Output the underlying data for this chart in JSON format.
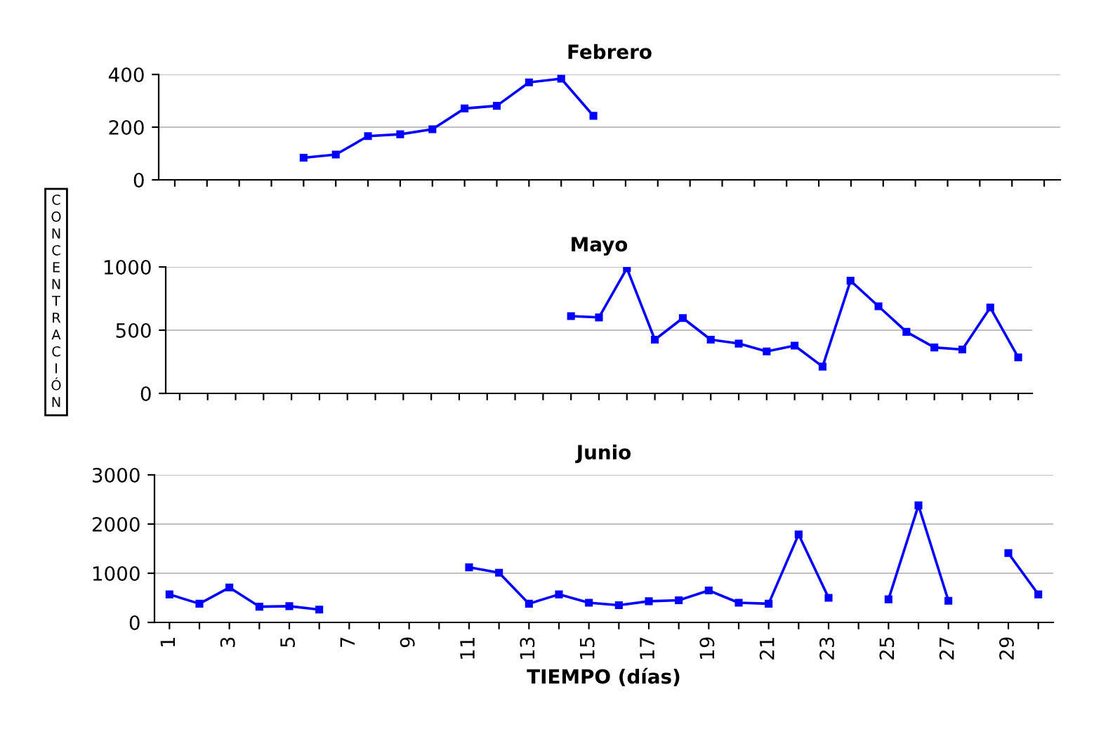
{
  "chart_data": [
    {
      "type": "line",
      "title": "Febrero",
      "categories": [
        null,
        null,
        null,
        null,
        null,
        null,
        null,
        null,
        null,
        null,
        null,
        null,
        null,
        null,
        null,
        null,
        null,
        null,
        null,
        null,
        null,
        null,
        null,
        null,
        null,
        null,
        null,
        null
      ],
      "series": [
        {
          "color": "#0000ff",
          "values": [
            null,
            null,
            null,
            null,
            84,
            96,
            166,
            173,
            192,
            271,
            281,
            370,
            384,
            243,
            null,
            null,
            null,
            null,
            null,
            null,
            null,
            null,
            null,
            null,
            null,
            null,
            null,
            null
          ]
        }
      ],
      "ylim": [
        0,
        400
      ],
      "yticks": [
        0,
        200,
        400
      ],
      "grid": "y",
      "marker": "square",
      "line_style": "solid",
      "tick_labels": "y"
    },
    {
      "type": "line",
      "title": "Mayo",
      "ylabel": "CONCENTRACIÓN",
      "categories": [
        null,
        null,
        null,
        null,
        null,
        null,
        null,
        null,
        null,
        null,
        null,
        null,
        null,
        null,
        null,
        null,
        null,
        null,
        null,
        null,
        null,
        null,
        null,
        null,
        null,
        null,
        null,
        null,
        null,
        null,
        null
      ],
      "series": [
        {
          "color": "#0000ff",
          "values": [
            null,
            null,
            null,
            null,
            null,
            null,
            null,
            null,
            null,
            null,
            null,
            null,
            null,
            null,
            611,
            601,
            990,
            425,
            596,
            425,
            394,
            332,
            378,
            212,
            891,
            689,
            487,
            363,
            347,
            679,
            285
          ]
        }
      ],
      "ylim": [
        0,
        1000
      ],
      "yticks": [
        0,
        500,
        1000
      ],
      "grid": "y",
      "marker": "square",
      "line_style": "solid",
      "tick_labels": "y"
    },
    {
      "type": "line",
      "title": "Junio",
      "xlabel": "TIEMPO (días)",
      "categories": [
        "1",
        null,
        "3",
        null,
        "5",
        null,
        "7",
        null,
        "9",
        null,
        "11",
        null,
        "13",
        null,
        "15",
        null,
        "17",
        null,
        "19",
        null,
        "21",
        null,
        "23",
        null,
        "25",
        null,
        "27",
        null,
        "29",
        null
      ],
      "series": [
        {
          "color": "#0000ff",
          "values": [
            570,
            380,
            710,
            320,
            330,
            260,
            null,
            null,
            null,
            null,
            1120,
            1010,
            380,
            570,
            400,
            350,
            430,
            450,
            650,
            400,
            380,
            1790,
            500,
            null,
            470,
            2380,
            440,
            null,
            1410,
            570
          ]
        }
      ],
      "ylim": [
        0,
        3000
      ],
      "yticks": [
        0,
        1000,
        2000,
        3000
      ],
      "grid": "y",
      "marker": "square",
      "line_style": "solid"
    }
  ]
}
